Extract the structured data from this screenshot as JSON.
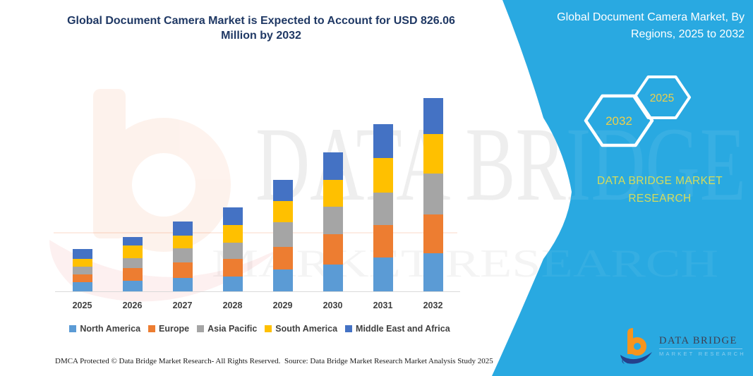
{
  "header": {
    "title_line1": "Global Document Camera Market is Expected to Account for USD 826.06",
    "title_line2": "Million by 2032",
    "title_color": "#1F3864"
  },
  "panel": {
    "bg_color": "#29A9E1",
    "heading_line1": "Global Document Camera Market, By",
    "heading_line2": "Regions, 2025 to 2032",
    "badges": [
      {
        "label": "2032"
      },
      {
        "label": "2025"
      }
    ],
    "badge_text_color": "#EDD04B",
    "brand_line1": "DATA BRIDGE MARKET",
    "brand_line2": "RESEARCH",
    "brand_color": "#D6DC5A"
  },
  "chart_data": {
    "type": "bar",
    "stacked": true,
    "title": "Global Document Camera Market is Expected to Account for USD 826.06 Million by 2032",
    "unit": "USD Million",
    "xlabel": "",
    "ylabel": "",
    "grid": false,
    "y_axis_visible": false,
    "legend_position": "bottom",
    "categories": [
      "2025",
      "2026",
      "2027",
      "2028",
      "2029",
      "2030",
      "2031",
      "2032"
    ],
    "series": [
      {
        "name": "North America",
        "color": "#5B9BD5",
        "values": [
          38,
          46,
          58,
          63,
          93,
          115,
          143,
          164
        ]
      },
      {
        "name": "Europe",
        "color": "#ED7D31",
        "values": [
          35,
          54,
          65,
          75,
          97,
          128,
          140,
          165
        ]
      },
      {
        "name": "Asia Pacific",
        "color": "#A5A5A5",
        "values": [
          33,
          43,
          60,
          70,
          106,
          117,
          140,
          175
        ]
      },
      {
        "name": "South America",
        "color": "#FFC000",
        "values": [
          32,
          53,
          56,
          75,
          90,
          116,
          147,
          168
        ]
      },
      {
        "name": "Middle East and Africa",
        "color": "#4472C4",
        "values": [
          42,
          37,
          60,
          75,
          89,
          117,
          143,
          154.06
        ]
      }
    ],
    "totals": [
      180,
      233,
      299,
      358,
      475,
      593,
      713,
      826.06
    ]
  },
  "watermark": {
    "line1": "DATA BRIDGE",
    "line2": "MARKET RESEARCH"
  },
  "footer": {
    "dmca": "DMCA Protected © Data Bridge Market Research-  All Rights Reserved.",
    "source": "Source: Data Bridge Market Research  Market Analysis Study 2025"
  },
  "logo": {
    "name": "DATA BRIDGE",
    "tagline": "MARKET RESEARCH"
  }
}
